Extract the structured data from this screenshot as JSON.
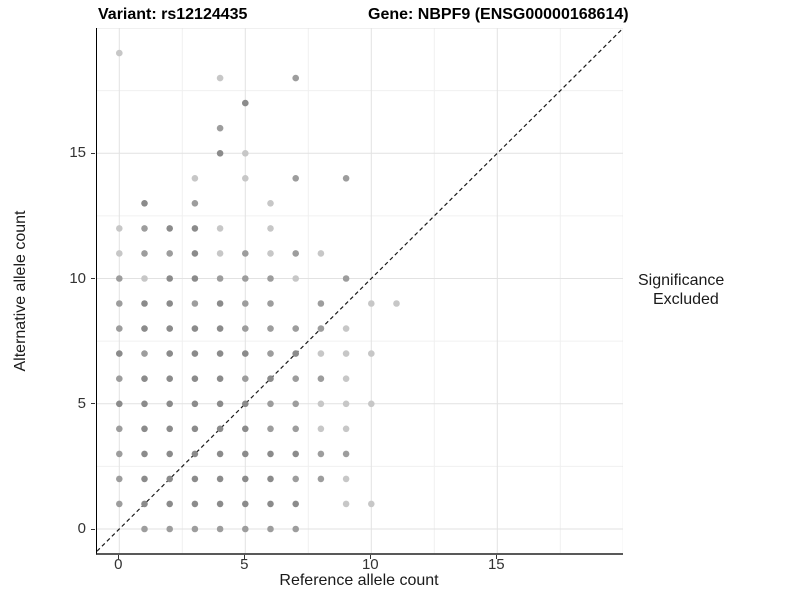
{
  "titles": {
    "variant": "Variant: rs12124435",
    "gene": "Gene: NBPF9 (ENSG00000168614)"
  },
  "axes": {
    "x_label": "Reference allele count",
    "y_label": "Alternative allele count",
    "x_ticks": [
      "0",
      "5",
      "10",
      "15"
    ],
    "y_ticks": [
      "0",
      "5",
      "10",
      "15"
    ]
  },
  "legend": {
    "title": "Significance",
    "items": [
      {
        "label": "Excluded",
        "color": "#9b9b9b"
      }
    ]
  },
  "colors": {
    "background": "#ffffff",
    "title_text": "#000000",
    "tick_text": "#333333",
    "axis_line_y": "#000000",
    "axis_line_x": "#595959",
    "grid_major": "#e2e2e2",
    "grid_minor": "#f0f0f0",
    "identity_line": "#1a1a1a"
  },
  "chart_data": {
    "type": "scatter",
    "title": "Variant: rs12124435 | Gene: NBPF9 (ENSG00000168614)",
    "xlabel": "Reference allele count",
    "ylabel": "Alternative allele count",
    "xlim": [
      -1,
      20
    ],
    "ylim": [
      -1,
      20
    ],
    "x_tick_values": [
      0,
      5,
      10,
      15
    ],
    "y_tick_values": [
      0,
      5,
      10,
      15
    ],
    "grid": {
      "major_x": [
        0,
        5,
        10,
        15,
        20
      ],
      "major_y": [
        0,
        5,
        10,
        15,
        20
      ],
      "minor_x": [
        2.5,
        7.5,
        12.5,
        17.5
      ],
      "minor_y": [
        2.5,
        7.5,
        12.5,
        17.5
      ]
    },
    "identity_line": {
      "equation": "y = x",
      "style": "dashed"
    },
    "legend_position": "right",
    "point_radius_px": 3.3,
    "point_colors": {
      "l": "#c7c7c7",
      "n": "#9d9d9d",
      "d": "#8b8b8b"
    },
    "series": [
      {
        "name": "Excluded",
        "color": "#9b9b9b",
        "points": [
          [
            0,
            19,
            "l"
          ],
          [
            4,
            18,
            "l"
          ],
          [
            7,
            18,
            "n"
          ],
          [
            5,
            17,
            "d"
          ],
          [
            4,
            16,
            "n"
          ],
          [
            4,
            15,
            "d"
          ],
          [
            5,
            15,
            "l"
          ],
          [
            3,
            14,
            "l"
          ],
          [
            5,
            14,
            "l"
          ],
          [
            7,
            14,
            "n"
          ],
          [
            9,
            14,
            "n"
          ],
          [
            1,
            13,
            "d"
          ],
          [
            3,
            13,
            "n"
          ],
          [
            6,
            13,
            "l"
          ],
          [
            0,
            12,
            "l"
          ],
          [
            1,
            12,
            "n"
          ],
          [
            2,
            12,
            "d"
          ],
          [
            3,
            12,
            "d"
          ],
          [
            4,
            12,
            "l"
          ],
          [
            6,
            12,
            "l"
          ],
          [
            0,
            11,
            "l"
          ],
          [
            1,
            11,
            "n"
          ],
          [
            2,
            11,
            "n"
          ],
          [
            3,
            11,
            "d"
          ],
          [
            4,
            11,
            "l"
          ],
          [
            5,
            11,
            "n"
          ],
          [
            6,
            11,
            "l"
          ],
          [
            7,
            11,
            "n"
          ],
          [
            8,
            11,
            "l"
          ],
          [
            0,
            10,
            "n"
          ],
          [
            1,
            10,
            "l"
          ],
          [
            2,
            10,
            "d"
          ],
          [
            3,
            10,
            "d"
          ],
          [
            4,
            10,
            "n"
          ],
          [
            5,
            10,
            "n"
          ],
          [
            6,
            10,
            "n"
          ],
          [
            7,
            10,
            "l"
          ],
          [
            9,
            10,
            "n"
          ],
          [
            0,
            9,
            "n"
          ],
          [
            1,
            9,
            "d"
          ],
          [
            2,
            9,
            "d"
          ],
          [
            3,
            9,
            "n"
          ],
          [
            4,
            9,
            "d"
          ],
          [
            5,
            9,
            "n"
          ],
          [
            6,
            9,
            "n"
          ],
          [
            8,
            9,
            "n"
          ],
          [
            10,
            9,
            "l"
          ],
          [
            11,
            9,
            "l"
          ],
          [
            0,
            8,
            "n"
          ],
          [
            1,
            8,
            "d"
          ],
          [
            2,
            8,
            "d"
          ],
          [
            3,
            8,
            "d"
          ],
          [
            4,
            8,
            "d"
          ],
          [
            5,
            8,
            "n"
          ],
          [
            6,
            8,
            "n"
          ],
          [
            7,
            8,
            "n"
          ],
          [
            8,
            8,
            "n"
          ],
          [
            9,
            8,
            "l"
          ],
          [
            0,
            7,
            "d"
          ],
          [
            1,
            7,
            "n"
          ],
          [
            2,
            7,
            "d"
          ],
          [
            3,
            7,
            "d"
          ],
          [
            4,
            7,
            "d"
          ],
          [
            5,
            7,
            "d"
          ],
          [
            6,
            7,
            "n"
          ],
          [
            7,
            7,
            "d"
          ],
          [
            8,
            7,
            "l"
          ],
          [
            9,
            7,
            "l"
          ],
          [
            10,
            7,
            "l"
          ],
          [
            0,
            6,
            "n"
          ],
          [
            1,
            6,
            "d"
          ],
          [
            2,
            6,
            "d"
          ],
          [
            3,
            6,
            "d"
          ],
          [
            4,
            6,
            "d"
          ],
          [
            5,
            6,
            "n"
          ],
          [
            6,
            6,
            "d"
          ],
          [
            7,
            6,
            "n"
          ],
          [
            8,
            6,
            "n"
          ],
          [
            9,
            6,
            "l"
          ],
          [
            0,
            5,
            "d"
          ],
          [
            1,
            5,
            "d"
          ],
          [
            2,
            5,
            "d"
          ],
          [
            3,
            5,
            "d"
          ],
          [
            4,
            5,
            "d"
          ],
          [
            5,
            5,
            "d"
          ],
          [
            6,
            5,
            "n"
          ],
          [
            7,
            5,
            "n"
          ],
          [
            8,
            5,
            "l"
          ],
          [
            9,
            5,
            "l"
          ],
          [
            10,
            5,
            "l"
          ],
          [
            0,
            4,
            "n"
          ],
          [
            1,
            4,
            "d"
          ],
          [
            2,
            4,
            "d"
          ],
          [
            3,
            4,
            "d"
          ],
          [
            4,
            4,
            "d"
          ],
          [
            5,
            4,
            "d"
          ],
          [
            6,
            4,
            "n"
          ],
          [
            7,
            4,
            "n"
          ],
          [
            8,
            4,
            "l"
          ],
          [
            9,
            4,
            "l"
          ],
          [
            0,
            3,
            "n"
          ],
          [
            1,
            3,
            "d"
          ],
          [
            2,
            3,
            "d"
          ],
          [
            3,
            3,
            "d"
          ],
          [
            4,
            3,
            "d"
          ],
          [
            5,
            3,
            "d"
          ],
          [
            6,
            3,
            "d"
          ],
          [
            7,
            3,
            "d"
          ],
          [
            8,
            3,
            "n"
          ],
          [
            9,
            3,
            "n"
          ],
          [
            0,
            2,
            "n"
          ],
          [
            1,
            2,
            "d"
          ],
          [
            2,
            2,
            "d"
          ],
          [
            3,
            2,
            "d"
          ],
          [
            4,
            2,
            "d"
          ],
          [
            5,
            2,
            "d"
          ],
          [
            6,
            2,
            "d"
          ],
          [
            7,
            2,
            "n"
          ],
          [
            8,
            2,
            "n"
          ],
          [
            9,
            2,
            "l"
          ],
          [
            0,
            1,
            "n"
          ],
          [
            1,
            1,
            "d"
          ],
          [
            2,
            1,
            "d"
          ],
          [
            3,
            1,
            "d"
          ],
          [
            4,
            1,
            "d"
          ],
          [
            5,
            1,
            "d"
          ],
          [
            6,
            1,
            "d"
          ],
          [
            7,
            1,
            "d"
          ],
          [
            9,
            1,
            "l"
          ],
          [
            10,
            1,
            "l"
          ],
          [
            1,
            0,
            "n"
          ],
          [
            2,
            0,
            "n"
          ],
          [
            3,
            0,
            "n"
          ],
          [
            4,
            0,
            "n"
          ],
          [
            5,
            0,
            "n"
          ],
          [
            6,
            0,
            "n"
          ],
          [
            7,
            0,
            "n"
          ]
        ]
      }
    ]
  }
}
